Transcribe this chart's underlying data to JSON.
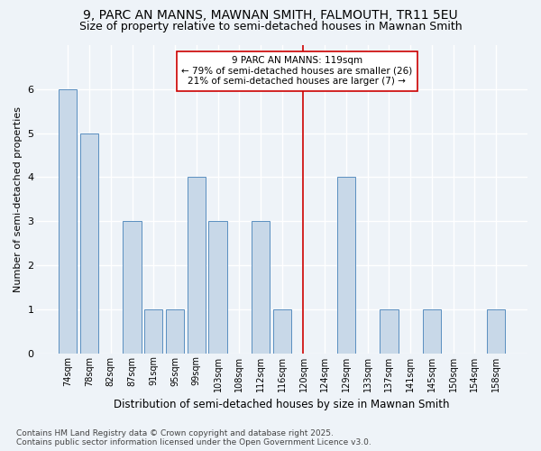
{
  "title": "9, PARC AN MANNS, MAWNAN SMITH, FALMOUTH, TR11 5EU",
  "subtitle": "Size of property relative to semi-detached houses in Mawnan Smith",
  "xlabel": "Distribution of semi-detached houses by size in Mawnan Smith",
  "ylabel": "Number of semi-detached properties",
  "footer1": "Contains HM Land Registry data © Crown copyright and database right 2025.",
  "footer2": "Contains public sector information licensed under the Open Government Licence v3.0.",
  "categories": [
    "74sqm",
    "78sqm",
    "82sqm",
    "87sqm",
    "91sqm",
    "95sqm",
    "99sqm",
    "103sqm",
    "108sqm",
    "112sqm",
    "116sqm",
    "120sqm",
    "124sqm",
    "129sqm",
    "133sqm",
    "137sqm",
    "141sqm",
    "145sqm",
    "150sqm",
    "154sqm",
    "158sqm"
  ],
  "values": [
    6,
    5,
    0,
    3,
    1,
    1,
    4,
    3,
    0,
    3,
    1,
    0,
    0,
    4,
    0,
    1,
    0,
    1,
    0,
    0,
    1
  ],
  "bar_color": "#c8d8e8",
  "bar_edge_color": "#5a8fc0",
  "highlight_index": 11,
  "highlight_line_color": "#cc0000",
  "annotation_text": "9 PARC AN MANNS: 119sqm\n← 79% of semi-detached houses are smaller (26)\n21% of semi-detached houses are larger (7) →",
  "annotation_box_color": "#ffffff",
  "annotation_box_edge_color": "#cc0000",
  "ylim": [
    0,
    7
  ],
  "yticks": [
    0,
    1,
    2,
    3,
    4,
    5,
    6
  ],
  "bg_color": "#eef3f8",
  "plot_bg_color": "#eef3f8",
  "grid_color": "#ffffff",
  "title_fontsize": 10,
  "subtitle_fontsize": 9,
  "annotation_fontsize": 7.5,
  "footer_fontsize": 6.5,
  "ylabel_fontsize": 8,
  "xlabel_fontsize": 8.5,
  "tick_fontsize": 7,
  "ytick_fontsize": 8
}
